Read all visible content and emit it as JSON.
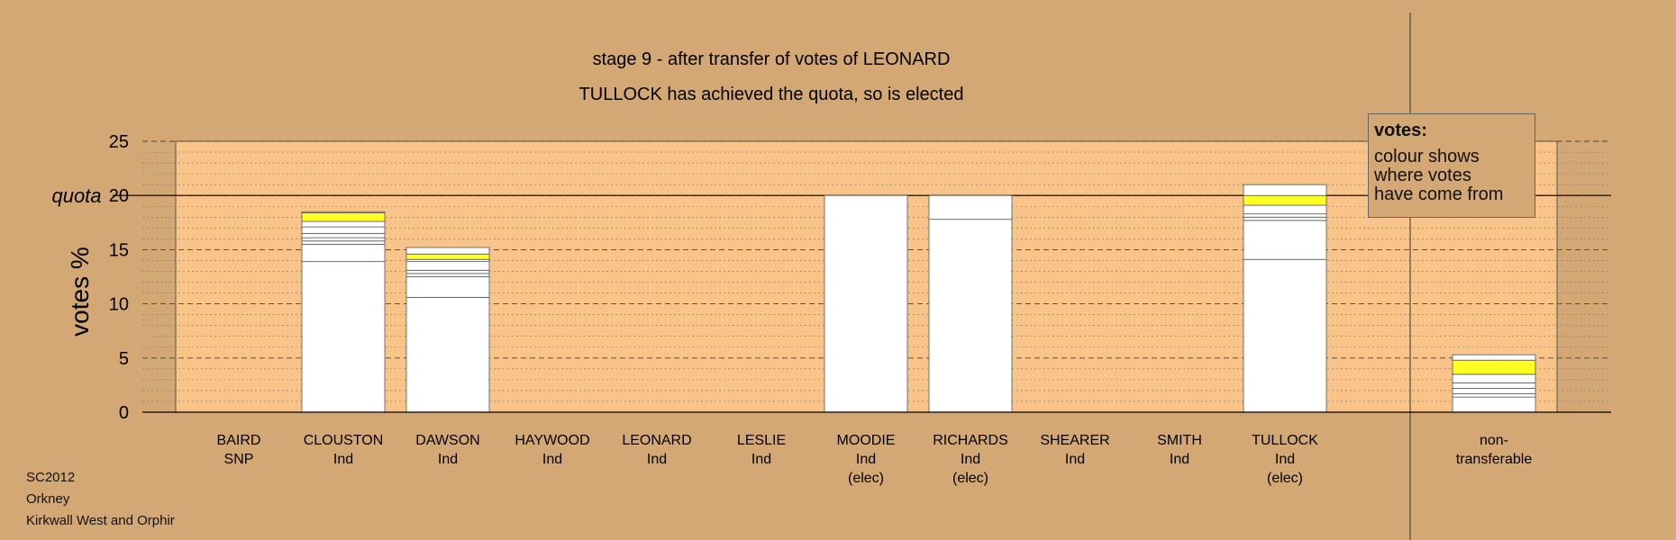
{
  "chart_data": {
    "type": "bar",
    "title": "stage 9 - after transfer of votes of LEONARD",
    "subtitle": "TULLOCK has achieved the quota, so is elected",
    "ylabel": "votes %",
    "ylim": [
      0,
      25
    ],
    "yticks": [
      "0",
      "5",
      "10",
      "15",
      "20",
      "25"
    ],
    "quota": 20,
    "quota_label": "quota",
    "grid": true,
    "candidates": [
      {
        "name": "BAIRD",
        "party": "SNP",
        "status": "",
        "segments": []
      },
      {
        "name": "CLOUSTON",
        "party": "Ind",
        "status": "",
        "segments": [
          {
            "value": 13.9,
            "color": "#ffffff"
          },
          {
            "value": 1.6,
            "color": "#ffffff"
          },
          {
            "value": 0.3,
            "color": "#ffffff"
          },
          {
            "value": 0.3,
            "color": "#ffffff"
          },
          {
            "value": 0.4,
            "color": "#ffffff"
          },
          {
            "value": 0.6,
            "color": "#ffffff"
          },
          {
            "value": 0.5,
            "color": "#ffffff"
          },
          {
            "value": 0.8,
            "color": "#ffff20"
          },
          {
            "value": 0.1,
            "color": "#ffffff"
          }
        ]
      },
      {
        "name": "DAWSON",
        "party": "Ind",
        "status": "",
        "segments": [
          {
            "value": 10.6,
            "color": "#ffffff"
          },
          {
            "value": 1.9,
            "color": "#ffffff"
          },
          {
            "value": 0.3,
            "color": "#ffffff"
          },
          {
            "value": 0.3,
            "color": "#ffffff"
          },
          {
            "value": 0.8,
            "color": "#ffffff"
          },
          {
            "value": 0.2,
            "color": "#ffffff"
          },
          {
            "value": 0.5,
            "color": "#ffff20"
          },
          {
            "value": 0.6,
            "color": "#ffffff"
          }
        ]
      },
      {
        "name": "HAYWOOD",
        "party": "Ind",
        "status": "",
        "segments": []
      },
      {
        "name": "LEONARD",
        "party": "Ind",
        "status": "",
        "segments": []
      },
      {
        "name": "LESLIE",
        "party": "Ind",
        "status": "",
        "segments": []
      },
      {
        "name": "MOODIE",
        "party": "Ind",
        "status": "(elec)",
        "segments": [
          {
            "value": 20,
            "color": "#ffffff"
          }
        ]
      },
      {
        "name": "RICHARDS",
        "party": "Ind",
        "status": "(elec)",
        "segments": [
          {
            "value": 17.8,
            "color": "#ffffff"
          },
          {
            "value": 2.2,
            "color": "#ffffff"
          }
        ]
      },
      {
        "name": "SHEARER",
        "party": "Ind",
        "status": "",
        "segments": []
      },
      {
        "name": "SMITH",
        "party": "Ind",
        "status": "",
        "segments": []
      },
      {
        "name": "TULLOCK",
        "party": "Ind",
        "status": "(elec)",
        "segments": [
          {
            "value": 14.1,
            "color": "#ffffff"
          },
          {
            "value": 3.6,
            "color": "#ffffff"
          },
          {
            "value": 0.3,
            "color": "#ffffff"
          },
          {
            "value": 0.3,
            "color": "#ffffff"
          },
          {
            "value": 0.8,
            "color": "#ffffff"
          },
          {
            "value": 0.9,
            "color": "#ffff20"
          },
          {
            "value": 1.0,
            "color": "#ffffff"
          }
        ]
      },
      {
        "name": "non-",
        "party": "transferable",
        "status": "",
        "segments": [
          {
            "value": 1.4,
            "color": "#ffffff"
          },
          {
            "value": 0.3,
            "color": "#ffffff"
          },
          {
            "value": 0.5,
            "color": "#ffffff"
          },
          {
            "value": 0.5,
            "color": "#ffffff"
          },
          {
            "value": 0.8,
            "color": "#ffffff"
          },
          {
            "value": 1.3,
            "color": "#ffff20"
          },
          {
            "value": 0.5,
            "color": "#ffffff"
          }
        ]
      }
    ]
  },
  "legend": {
    "title": "votes:",
    "lines": [
      "colour shows",
      "where votes",
      "have come from"
    ]
  },
  "footer": {
    "line1": "SC2012",
    "line2": "Orkney",
    "line3": "Kirkwall West and Orphir"
  },
  "colors": {
    "background": "#d4a874",
    "plot_area": "#f9c48a",
    "bar": "#ffffff",
    "highlight": "#ffff20"
  }
}
